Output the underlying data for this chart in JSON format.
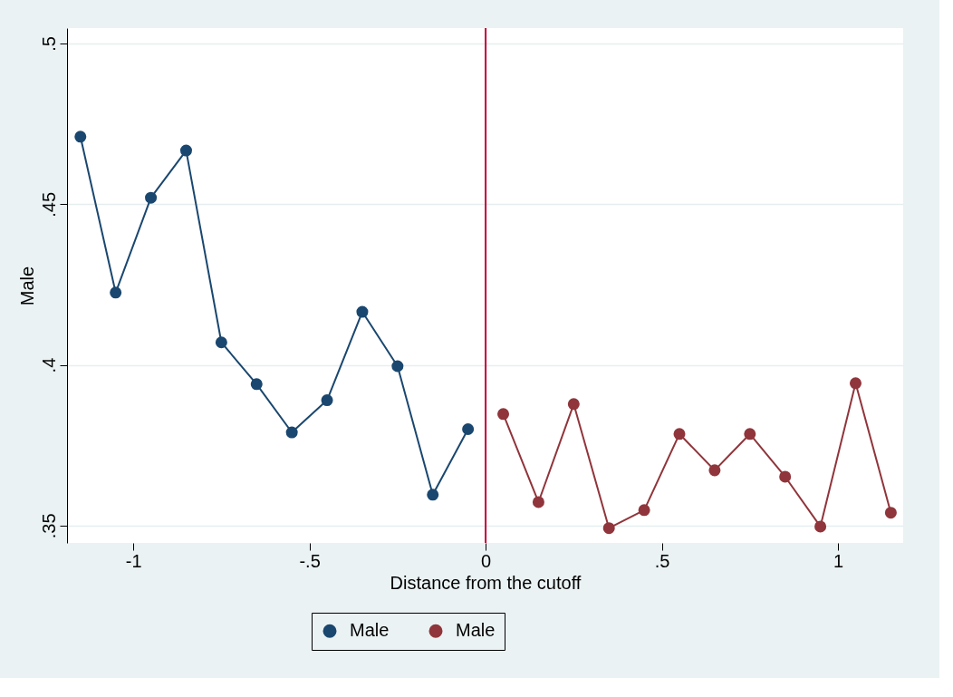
{
  "chart_data": {
    "type": "line",
    "xlabel": "Distance from the cutoff",
    "ylabel": "Male",
    "xlim": [
      -1.188,
      1.185
    ],
    "ylim": [
      0.3446,
      0.5048
    ],
    "xticks": [
      {
        "value": -1,
        "label": "-1"
      },
      {
        "value": -0.5,
        "label": "-.5"
      },
      {
        "value": 0,
        "label": "0"
      },
      {
        "value": 0.5,
        "label": ".5"
      },
      {
        "value": 1,
        "label": "1"
      }
    ],
    "yticks": [
      {
        "value": 0.35,
        "label": ".35"
      },
      {
        "value": 0.4,
        "label": ".4"
      },
      {
        "value": 0.45,
        "label": ".45"
      },
      {
        "value": 0.5,
        "label": ".5"
      }
    ],
    "grid": "y",
    "legend": "bottom",
    "marker": "circle",
    "line_style": "solid",
    "series": [
      {
        "name": "Male",
        "color": "#1a476f",
        "x": [
          -1.15,
          -1.05,
          -0.95,
          -0.85,
          -0.75,
          -0.65,
          -0.55,
          -0.45,
          -0.35,
          -0.25,
          -0.15,
          -0.05
        ],
        "values": [
          0.471,
          0.4225,
          0.452,
          0.4667,
          0.407,
          0.394,
          0.379,
          0.389,
          0.4165,
          0.3996,
          0.3596,
          0.38
        ]
      },
      {
        "name": "Male",
        "color": "#90353b",
        "x": [
          0.05,
          0.15,
          0.25,
          0.35,
          0.45,
          0.55,
          0.65,
          0.75,
          0.85,
          0.95,
          1.05,
          1.15
        ],
        "values": [
          0.3847,
          0.3573,
          0.3878,
          0.3492,
          0.3548,
          0.3785,
          0.3672,
          0.3785,
          0.3652,
          0.3497,
          0.3943,
          0.354
        ]
      }
    ],
    "ref_lines": [
      {
        "axis": "x",
        "value": 0,
        "color": "#c10534"
      }
    ]
  }
}
